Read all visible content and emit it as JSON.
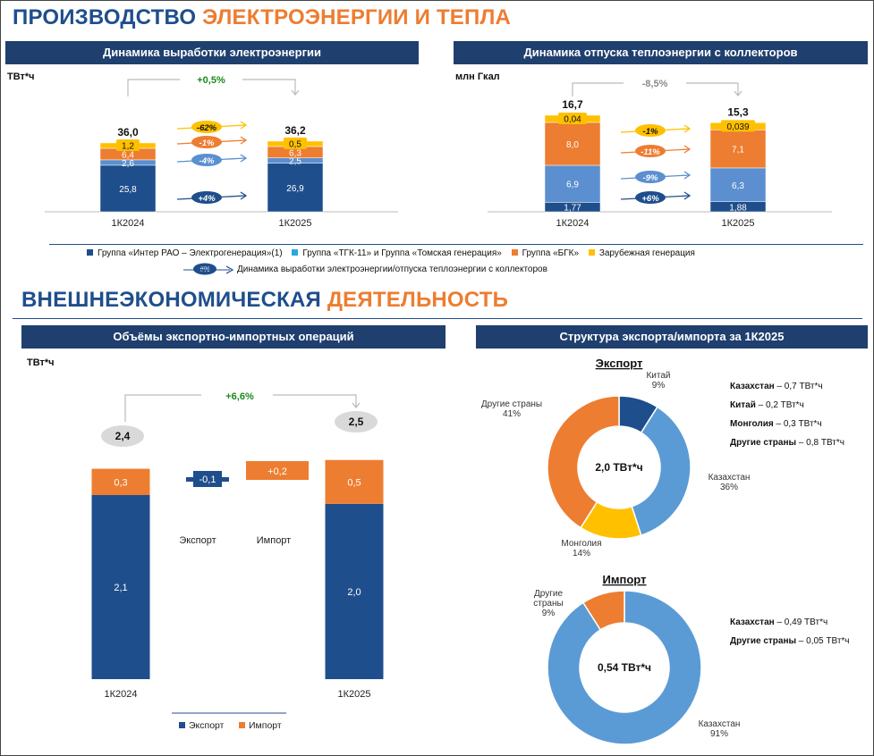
{
  "sec1_title": {
    "a": "ПРОИЗВОДСТВО",
    "b": "ЭЛЕКТРОЭНЕРГИИ И ТЕПЛА"
  },
  "sec2_title": {
    "a": "ВНЕШНЕЭКОНОМИЧЕСКАЯ",
    "b": "ДЕЯТЕЛЬНОСТЬ"
  },
  "colors": {
    "navy": "#1f4e8c",
    "blue": "#5b8fcf",
    "orange": "#ed7d31",
    "yellow": "#ffc000",
    "green": "#1a8a1a",
    "gray": "#8a8a8a"
  },
  "legend1": {
    "items": [
      "Группа «Интер РАО – Электрогенерация»(1)",
      "Группа «ТГК-11» и Группа «Томская генерация»",
      "Группа «БГК»",
      "Зарубежная генерация"
    ],
    "dyn_badge": "#%",
    "dyn_label": "Динамика выработки электроэнергии/отпуска теплоэнергии с коллекторов"
  },
  "legend2": {
    "export": "Экспорт",
    "import": "Импорт"
  },
  "chart_data": [
    {
      "type": "bar",
      "stacked": true,
      "title": "Динамика выработки электроэнергии",
      "unit": "ТВт*ч",
      "categories": [
        "1К2024",
        "1К2025"
      ],
      "totals": [
        "36,0",
        "36,2"
      ],
      "total_change": "+0,5%",
      "series": [
        {
          "name": "Группа «Интер РАО – Электрогенерация»",
          "values": [
            25.8,
            26.9
          ],
          "labels": [
            "25,8",
            "26,9"
          ],
          "change": "+4%"
        },
        {
          "name": "Группа «ТГК-11» и Группа «Томская генерация»",
          "values": [
            2.6,
            2.5
          ],
          "labels": [
            "2,6",
            "2,5"
          ],
          "change": "-4%"
        },
        {
          "name": "Группа «БГК»",
          "values": [
            6.4,
            6.3
          ],
          "labels": [
            "6,4",
            "6,3"
          ],
          "change": "-1%"
        },
        {
          "name": "Зарубежная генерация",
          "values": [
            1.2,
            0.5
          ],
          "labels": [
            "1,2",
            "0,5"
          ],
          "change": "-62%"
        }
      ]
    },
    {
      "type": "bar",
      "stacked": true,
      "title": "Динамика отпуска теплоэнергии с коллекторов",
      "unit": "млн Гкал",
      "categories": [
        "1К2024",
        "1К2025"
      ],
      "totals": [
        "16,7",
        "15,3"
      ],
      "total_change": "-8,5%",
      "series": [
        {
          "name": "Группа «Интер РАО – Электрогенерация»",
          "values": [
            1.77,
            1.88
          ],
          "labels": [
            "1,77",
            "1,88"
          ],
          "change": "+6%"
        },
        {
          "name": "Группа «ТГК-11» и Группа «Томская генерация»",
          "values": [
            6.9,
            6.3
          ],
          "labels": [
            "6,9",
            "6,3"
          ],
          "change": "-9%"
        },
        {
          "name": "Группа «БГК»",
          "values": [
            8.0,
            7.1
          ],
          "labels": [
            "8,0",
            "7,1"
          ],
          "change": "-11%"
        },
        {
          "name": "Зарубежная генерация",
          "values": [
            0.04,
            0.039
          ],
          "labels": [
            "0,04",
            "0,039"
          ],
          "change": "-1%"
        }
      ]
    },
    {
      "type": "bar",
      "subtype": "waterfall",
      "title": "Объёмы экспортно-импортных операций",
      "unit": "ТВт*ч",
      "categories": [
        "1К2024",
        "Экспорт",
        "Импорт",
        "1К2025"
      ],
      "totals": [
        "2,4",
        "2,5"
      ],
      "total_change": "+6,6%",
      "start": {
        "export": 2.1,
        "import": 0.3,
        "labels": [
          "2,1",
          "0,3"
        ]
      },
      "deltas": [
        {
          "name": "Экспорт",
          "value": -0.1,
          "label": "-0,1"
        },
        {
          "name": "Импорт",
          "value": 0.2,
          "label": "+0,2"
        }
      ],
      "end": {
        "export": 2.0,
        "import": 0.5,
        "labels": [
          "2,0",
          "0,5"
        ]
      }
    },
    {
      "type": "pie",
      "donut": true,
      "title": "Экспорт",
      "center_label": "2,0 ТВт*ч",
      "slices": [
        {
          "name": "Китай",
          "percent": 9,
          "label": "9%",
          "color": "#1f4e8c"
        },
        {
          "name": "Казахстан",
          "percent": 36,
          "label": "36%",
          "color": "#5b9bd5"
        },
        {
          "name": "Монголия",
          "percent": 14,
          "label": "14%",
          "color": "#ffc000"
        },
        {
          "name": "Другие страны",
          "percent": 41,
          "label": "41%",
          "color": "#ed7d31"
        }
      ],
      "notes": [
        {
          "name": "Казахстан",
          "value": " – 0,7 ТВт*ч"
        },
        {
          "name": "Китай",
          "value": " – 0,2 ТВт*ч"
        },
        {
          "name": "Монголия",
          "value": " – 0,3 ТВт*ч"
        },
        {
          "name": "Другие страны",
          "value": " – 0,8 ТВт*ч"
        }
      ]
    },
    {
      "type": "pie",
      "donut": true,
      "title": "Импорт",
      "center_label": "0,54 ТВт*ч",
      "slices": [
        {
          "name": "Казахстан",
          "percent": 91,
          "label": "91%",
          "color": "#5b9bd5"
        },
        {
          "name": "Другие страны",
          "name_lines": [
            "Другие",
            "страны"
          ],
          "percent": 9,
          "label": "9%",
          "color": "#ed7d31"
        }
      ],
      "notes": [
        {
          "name": "Казахстан",
          "value": " – 0,49 ТВт*ч"
        },
        {
          "name": "Другие страны",
          "value": " – 0,05 ТВт*ч"
        }
      ]
    }
  ]
}
